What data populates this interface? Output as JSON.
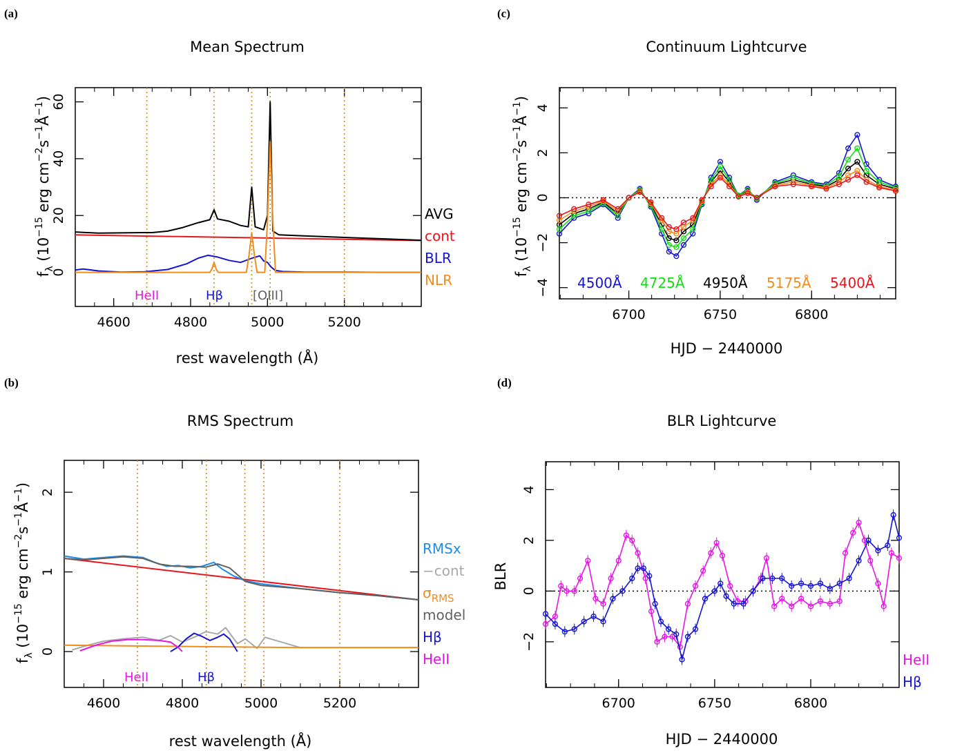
{
  "colors": {
    "avg": "#000000",
    "cont": "#e8141c",
    "blr": "#1414d2",
    "nlr": "#f08c1e",
    "grey": "#a8a8a8",
    "rms": "#1e8ce6",
    "model": "#606060",
    "heii": "#e614e6",
    "w4500": "#1414d2",
    "w4725": "#14dc14",
    "w4950": "#000000",
    "w5175": "#f08c1e",
    "w5400": "#e8141c",
    "guide": "#d28c1e"
  },
  "chart_data": [
    {
      "panel": "(a)",
      "type": "line",
      "title": "Mean Spectrum",
      "xlabel": "rest wavelength (Å)",
      "ylabel": "f_λ (10^-15 erg cm^-2 s^-1 Å^-1)",
      "xlim": [
        4500,
        5400
      ],
      "ylim": [
        -12,
        65
      ],
      "xticks": [
        4600,
        4800,
        5000,
        5200
      ],
      "yticks": [
        0,
        20,
        40,
        60
      ],
      "legend": [
        "AVG",
        "cont",
        "BLR",
        "NLR"
      ],
      "line_markers": [
        4686,
        4861,
        4959,
        5007,
        5200
      ],
      "annotations": [
        "HeII",
        "Hβ",
        "[OIII]"
      ],
      "series": [
        {
          "name": "cont",
          "x": [
            4500,
            5400
          ],
          "y": [
            13.2,
            11.2
          ]
        },
        {
          "name": "AVG",
          "x": [
            4500,
            4560,
            4620,
            4680,
            4700,
            4740,
            4780,
            4820,
            4850,
            4861,
            4870,
            4900,
            4930,
            4950,
            4959,
            4968,
            4990,
            5000,
            5007,
            5014,
            5030,
            5100,
            5200,
            5300,
            5400
          ],
          "y": [
            14.2,
            13.8,
            13.9,
            14.0,
            14.0,
            14.5,
            15.8,
            17.5,
            18.5,
            22,
            18.8,
            18.0,
            16.5,
            16.0,
            30,
            16.0,
            15.0,
            20,
            60,
            14.5,
            13.2,
            12.8,
            12.3,
            11.8,
            11.3
          ]
        },
        {
          "name": "BLR",
          "x": [
            4500,
            4520,
            4560,
            4620,
            4680,
            4740,
            4790,
            4820,
            4845,
            4870,
            4900,
            4930,
            4960,
            4980,
            4990,
            5000,
            5010,
            5020,
            5040,
            5100,
            5200,
            5300,
            5400
          ],
          "y": [
            0.8,
            1.2,
            0.5,
            0.1,
            0.2,
            1.0,
            3.0,
            5.0,
            6.0,
            5.4,
            4.2,
            3.5,
            5.0,
            5.8,
            4.0,
            3.5,
            1.8,
            0.7,
            0.3,
            0.1,
            0.1,
            0,
            0
          ]
        },
        {
          "name": "NLR",
          "x": [
            4500,
            4850,
            4855,
            4861,
            4867,
            4872,
            4945,
            4952,
            4959,
            4966,
            4973,
            4993,
            5000,
            5007,
            5014,
            5021,
            5400
          ],
          "y": [
            0,
            0,
            1,
            3.5,
            1,
            0,
            0,
            6,
            14,
            6,
            0,
            0,
            18,
            46,
            18,
            0,
            0
          ]
        }
      ]
    },
    {
      "panel": "(b)",
      "type": "line",
      "title": "RMS Spectrum",
      "xlabel": "rest wavelength (Å)",
      "ylabel": "f_λ (10^-15 erg cm^-2 s^-1 Å^-1)",
      "xlim": [
        4500,
        5400
      ],
      "ylim": [
        -0.45,
        2.4
      ],
      "xticks": [
        4600,
        4800,
        5000,
        5200
      ],
      "yticks": [
        0,
        1,
        2
      ],
      "legend": [
        "RMSx",
        "−cont",
        "σ_RMS",
        "model",
        "Hβ",
        "HeII"
      ],
      "line_markers": [
        4686,
        4861,
        4959,
        5007,
        5200
      ],
      "annotations": [
        "HeII",
        "Hβ"
      ],
      "series": [
        {
          "name": "cont",
          "x": [
            4500,
            5400
          ],
          "y": [
            1.17,
            0.65
          ]
        },
        {
          "name": "RMSx",
          "x": [
            4500,
            4550,
            4600,
            4650,
            4700,
            4730,
            4760,
            4790,
            4820,
            4850,
            4880,
            4900,
            4930,
            4960,
            5000,
            5050,
            5100,
            5200,
            5300,
            5400
          ],
          "y": [
            1.2,
            1.16,
            1.18,
            1.2,
            1.18,
            1.12,
            1.07,
            1.08,
            1.05,
            1.07,
            1.12,
            1.04,
            0.95,
            0.89,
            0.85,
            0.82,
            0.79,
            0.74,
            0.7,
            0.65
          ]
        },
        {
          "name": "−cont",
          "x": [
            4520,
            4560,
            4600,
            4650,
            4700,
            4740,
            4770,
            4800,
            4830,
            4860,
            4890,
            4910,
            4940,
            4960,
            4990,
            5010,
            5100,
            5400
          ],
          "y": [
            0.02,
            0.08,
            0.13,
            0.16,
            0.18,
            0.14,
            0.2,
            0.12,
            0.18,
            0.25,
            0.22,
            0.3,
            0.1,
            0.16,
            0.04,
            0.18,
            0.05,
            0.05
          ]
        },
        {
          "name": "σ_RMS",
          "x": [
            4500,
            4700,
            4900,
            5100,
            5400
          ],
          "y": [
            0.08,
            0.07,
            0.06,
            0.05,
            0.05
          ]
        },
        {
          "name": "Hβ",
          "x": [
            4770,
            4790,
            4810,
            4830,
            4850,
            4870,
            4890,
            4905,
            4920,
            4940
          ],
          "y": [
            0,
            0.06,
            0.16,
            0.23,
            0.19,
            0.14,
            0.18,
            0.22,
            0.16,
            0
          ]
        },
        {
          "name": "HeII",
          "x": [
            4540,
            4580,
            4620,
            4660,
            4700,
            4740,
            4770,
            4790,
            4800
          ],
          "y": [
            0.01,
            0.08,
            0.13,
            0.15,
            0.15,
            0.14,
            0.12,
            0.05,
            0
          ]
        },
        {
          "name": "model",
          "x": [
            4500,
            4550,
            4600,
            4650,
            4700,
            4740,
            4780,
            4820,
            4860,
            4890,
            4920,
            4960,
            5000,
            5100,
            5200,
            5300,
            5400
          ],
          "y": [
            1.17,
            1.15,
            1.17,
            1.19,
            1.17,
            1.1,
            1.07,
            1.07,
            1.06,
            1.1,
            1.05,
            0.88,
            0.83,
            0.79,
            0.74,
            0.7,
            0.65
          ]
        }
      ]
    },
    {
      "panel": "(c)",
      "type": "line",
      "title": "Continuum Lightcurve",
      "xlabel": "HJD − 2440000",
      "ylabel": "f_λ (10^-15 erg cm^-2 s^-1 Å^-1)",
      "xlim": [
        6662,
        6846
      ],
      "ylim": [
        -4.5,
        4.9
      ],
      "xticks": [
        6700,
        6750,
        6800
      ],
      "yticks": [
        -4,
        -2,
        0,
        2,
        4
      ],
      "legend": [
        "4500Å",
        "4725Å",
        "4950Å",
        "5175Å",
        "5400Å"
      ],
      "series": [
        {
          "name": "4950Å",
          "x": [
            6662,
            6670,
            6678,
            6686,
            6694,
            6700,
            6706,
            6712,
            6718,
            6722,
            6726,
            6730,
            6735,
            6740,
            6745,
            6750,
            6755,
            6760,
            6765,
            6770,
            6780,
            6790,
            6800,
            6808,
            6815,
            6820,
            6825,
            6830,
            6837,
            6846
          ],
          "y": [
            -1.2,
            -0.7,
            -0.5,
            -0.2,
            -0.7,
            0,
            0.3,
            -0.3,
            -1.2,
            -1.8,
            -1.9,
            -1.5,
            -1.2,
            -0.2,
            0.7,
            1.2,
            0.7,
            0.1,
            0.3,
            0,
            0.6,
            0.8,
            0.6,
            0.5,
            0.8,
            1.3,
            1.6,
            1.0,
            0.6,
            0.4
          ]
        },
        {
          "name": "4500Å",
          "x": [
            6662,
            6670,
            6678,
            6686,
            6694,
            6700,
            6706,
            6712,
            6718,
            6722,
            6726,
            6730,
            6735,
            6740,
            6745,
            6750,
            6755,
            6760,
            6765,
            6770,
            6780,
            6790,
            6800,
            6808,
            6815,
            6820,
            6825,
            6830,
            6837,
            6846
          ],
          "y": [
            -1.6,
            -0.9,
            -0.7,
            -0.3,
            -0.9,
            0,
            0.4,
            -0.4,
            -1.6,
            -2.4,
            -2.6,
            -2.1,
            -1.6,
            -0.3,
            0.9,
            1.6,
            0.9,
            0.1,
            0.4,
            -0.1,
            0.7,
            1.0,
            0.7,
            0.6,
            1.1,
            2.2,
            2.8,
            1.5,
            0.8,
            0.5
          ]
        },
        {
          "name": "4725Å",
          "x": [
            6662,
            6670,
            6678,
            6686,
            6694,
            6700,
            6706,
            6712,
            6718,
            6722,
            6726,
            6730,
            6735,
            6740,
            6745,
            6750,
            6755,
            6760,
            6765,
            6770,
            6780,
            6790,
            6800,
            6808,
            6815,
            6820,
            6825,
            6830,
            6837,
            6846
          ],
          "y": [
            -1.4,
            -0.8,
            -0.6,
            -0.25,
            -0.8,
            0,
            0.35,
            -0.35,
            -1.4,
            -2.1,
            -2.2,
            -1.8,
            -1.4,
            -0.25,
            0.8,
            1.4,
            0.8,
            0.1,
            0.35,
            -0.05,
            0.65,
            0.9,
            0.65,
            0.55,
            0.95,
            1.7,
            2.2,
            1.2,
            0.7,
            0.45
          ]
        },
        {
          "name": "5175Å",
          "x": [
            6662,
            6670,
            6678,
            6686,
            6694,
            6700,
            6706,
            6712,
            6718,
            6722,
            6726,
            6730,
            6735,
            6740,
            6745,
            6750,
            6755,
            6760,
            6765,
            6770,
            6780,
            6790,
            6800,
            6808,
            6815,
            6820,
            6825,
            6830,
            6837,
            6846
          ],
          "y": [
            -1.0,
            -0.6,
            -0.4,
            -0.15,
            -0.6,
            0,
            0.28,
            -0.25,
            -1.0,
            -1.5,
            -1.6,
            -1.3,
            -1.0,
            -0.15,
            0.6,
            1.0,
            0.6,
            0.05,
            0.25,
            0,
            0.55,
            0.7,
            0.55,
            0.45,
            0.7,
            1.0,
            1.2,
            0.8,
            0.5,
            0.35
          ]
        },
        {
          "name": "5400Å",
          "x": [
            6662,
            6670,
            6678,
            6686,
            6694,
            6700,
            6706,
            6712,
            6718,
            6722,
            6726,
            6730,
            6735,
            6740,
            6745,
            6750,
            6755,
            6760,
            6765,
            6770,
            6780,
            6790,
            6800,
            6808,
            6815,
            6820,
            6825,
            6830,
            6837,
            6846
          ],
          "y": [
            -0.8,
            -0.5,
            -0.3,
            -0.1,
            -0.5,
            0,
            0.25,
            -0.2,
            -0.9,
            -1.3,
            -1.4,
            -1.1,
            -0.9,
            -0.1,
            0.5,
            0.9,
            0.5,
            0.05,
            0.2,
            0,
            0.5,
            0.6,
            0.5,
            0.4,
            0.6,
            0.8,
            1.0,
            0.7,
            0.45,
            0.3
          ]
        }
      ]
    },
    {
      "panel": "(d)",
      "type": "line",
      "title": "BLR Lightcurve",
      "xlabel": "HJD − 2440000",
      "ylabel": "BLR",
      "xlim": [
        6662,
        6846
      ],
      "ylim": [
        -3.8,
        5.1
      ],
      "xticks": [
        6700,
        6750,
        6800
      ],
      "yticks": [
        -2,
        0,
        2,
        4
      ],
      "legend": [
        "HeII",
        "Hβ"
      ],
      "series": [
        {
          "name": "HeII",
          "x": [
            6662,
            6667,
            6670,
            6673,
            6677,
            6680,
            6684,
            6688,
            6692,
            6696,
            6700,
            6704,
            6707,
            6710,
            6714,
            6717,
            6720,
            6724,
            6728,
            6732,
            6736,
            6740,
            6744,
            6748,
            6751,
            6754,
            6758,
            6762,
            6766,
            6770,
            6774,
            6777,
            6781,
            6785,
            6790,
            6795,
            6800,
            6805,
            6810,
            6815,
            6818,
            6822,
            6825,
            6828,
            6831,
            6835,
            6838,
            6842,
            6846
          ],
          "y": [
            -1.3,
            -1.0,
            0.2,
            0,
            0,
            0.5,
            1.2,
            -0.3,
            -0.5,
            0.5,
            1.2,
            2.2,
            2.0,
            1.5,
            0.5,
            -0.8,
            -2.0,
            -1.8,
            -1.8,
            -2.2,
            -0.5,
            0.2,
            0.8,
            1.5,
            1.9,
            1.4,
            0.2,
            -0.4,
            -0.4,
            0,
            0.5,
            1.3,
            -0.6,
            -0.3,
            -0.6,
            -0.3,
            -0.6,
            -0.4,
            -0.5,
            -0.4,
            1.5,
            2.3,
            2.7,
            2.0,
            1.2,
            0.3,
            -0.6,
            1.5,
            1.3
          ]
        },
        {
          "name": "Hβ",
          "x": [
            6662,
            6667,
            6672,
            6677,
            6682,
            6687,
            6692,
            6697,
            6702,
            6707,
            6710,
            6713,
            6716,
            6719,
            6722,
            6726,
            6730,
            6733,
            6736,
            6740,
            6745,
            6750,
            6753,
            6756,
            6760,
            6765,
            6770,
            6775,
            6780,
            6785,
            6790,
            6795,
            6800,
            6805,
            6810,
            6815,
            6820,
            6825,
            6830,
            6835,
            6840,
            6843,
            6846
          ],
          "y": [
            -0.9,
            -1.3,
            -1.6,
            -1.5,
            -1.2,
            -1.0,
            -1.2,
            -0.3,
            0,
            0.5,
            0.9,
            0.9,
            0.6,
            -0.5,
            -1.2,
            -1.5,
            -1.7,
            -2.7,
            -1.8,
            -1.5,
            -0.3,
            0,
            0.3,
            -0.2,
            -0.5,
            -0.5,
            0,
            0.5,
            0.5,
            0.5,
            0.2,
            0.3,
            0.2,
            0.3,
            0.1,
            0.3,
            0.5,
            1.2,
            2.0,
            1.6,
            1.8,
            3.0,
            2.1
          ]
        }
      ]
    }
  ],
  "panels": {
    "a": {
      "label": "(a)",
      "title": "Mean Spectrum",
      "ylabel_pre": "f",
      "ylabel_sub": "λ",
      "ylabel_rest": " (10",
      "ylabel_exp1": "−15",
      "ylabel_mid": " erg cm",
      "ylabel_exp2": "−2",
      "ylabel_s": "s",
      "ylabel_exp3": "−1",
      "ylabel_A": "Å",
      "ylabel_exp4": "−1",
      "ylabel_close": ")",
      "xlabel": "rest wavelength (Å)",
      "legend": [
        "AVG",
        "cont",
        "BLR",
        "NLR"
      ],
      "ann": [
        "HeII",
        "Hβ",
        "[OIII]"
      ]
    },
    "b": {
      "label": "(b)",
      "title": "RMS Spectrum",
      "xlabel": "rest wavelength (Å)",
      "legend_rmsx": "RMSx",
      "legend_cont": "−cont",
      "legend_sigma": "σ",
      "legend_sigma_sub": "RMS",
      "legend_model": "model",
      "legend_hb": "Hβ",
      "legend_heii": "HeII",
      "ann": [
        "HeII",
        "Hβ"
      ]
    },
    "c": {
      "label": "(c)",
      "title": "Continuum Lightcurve",
      "xlabel": "HJD − 2440000",
      "waves": [
        "4500Å",
        "4725Å",
        "4950Å",
        "5175Å",
        "5400Å"
      ]
    },
    "d": {
      "label": "(d)",
      "title": "BLR Lightcurve",
      "xlabel": "HJD − 2440000",
      "ylabel": "BLR",
      "legend": [
        "HeII",
        "Hβ"
      ]
    }
  }
}
